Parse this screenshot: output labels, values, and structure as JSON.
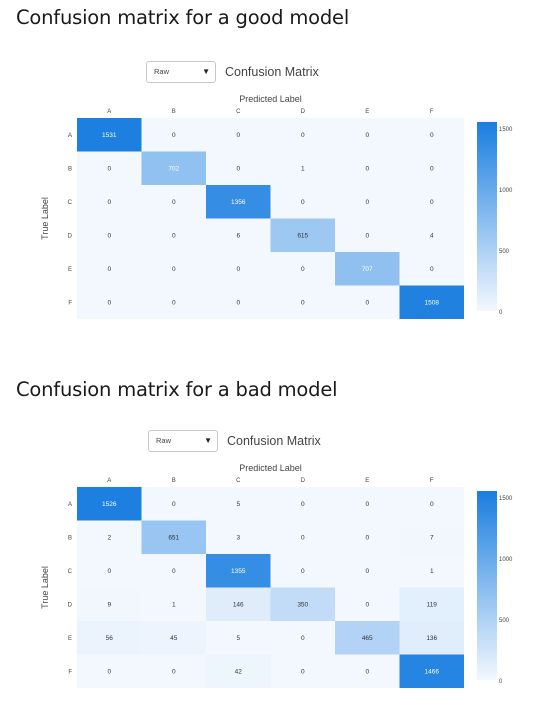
{
  "sections": [
    {
      "title": "Confusion matrix for a good model",
      "select_value": "Raw",
      "matrix_title": "Confusion Matrix"
    },
    {
      "title": "Confusion matrix for a bad model",
      "select_value": "Raw",
      "matrix_title": "Confusion Matrix"
    }
  ],
  "colors": {
    "low": "#f3f8fe",
    "high": "#1a7ee0"
  },
  "chart_data": [
    {
      "type": "heatmap",
      "title": "Confusion Matrix",
      "xlabel": "Predicted Label",
      "ylabel": "True Label",
      "x_categories": [
        "A",
        "B",
        "C",
        "D",
        "E",
        "F"
      ],
      "y_categories": [
        "A",
        "B",
        "C",
        "D",
        "E",
        "F"
      ],
      "values": [
        [
          1531,
          0,
          0,
          0,
          0,
          0
        ],
        [
          0,
          702,
          0,
          1,
          0,
          0
        ],
        [
          0,
          0,
          1356,
          0,
          0,
          0
        ],
        [
          0,
          0,
          6,
          615,
          0,
          4
        ],
        [
          0,
          0,
          0,
          0,
          707,
          0
        ],
        [
          0,
          0,
          0,
          0,
          0,
          1508
        ]
      ],
      "colorbar": {
        "ticks": [
          0,
          500,
          1000,
          1500
        ],
        "range": [
          0,
          1550
        ]
      },
      "legend": "right"
    },
    {
      "type": "heatmap",
      "title": "Confusion Matrix",
      "xlabel": "Predicted Label",
      "ylabel": "True Label",
      "x_categories": [
        "A",
        "B",
        "C",
        "D",
        "E",
        "F"
      ],
      "y_categories": [
        "A",
        "B",
        "C",
        "D",
        "E",
        "F"
      ],
      "values": [
        [
          1526,
          0,
          5,
          0,
          0,
          0
        ],
        [
          2,
          651,
          3,
          0,
          0,
          7
        ],
        [
          0,
          0,
          1355,
          0,
          0,
          1
        ],
        [
          9,
          1,
          146,
          350,
          0,
          119
        ],
        [
          56,
          45,
          5,
          0,
          465,
          136
        ],
        [
          0,
          0,
          42,
          0,
          0,
          1466
        ]
      ],
      "colorbar": {
        "ticks": [
          0,
          500,
          1000,
          1500
        ],
        "range": [
          0,
          1550
        ]
      },
      "legend": "right"
    }
  ]
}
